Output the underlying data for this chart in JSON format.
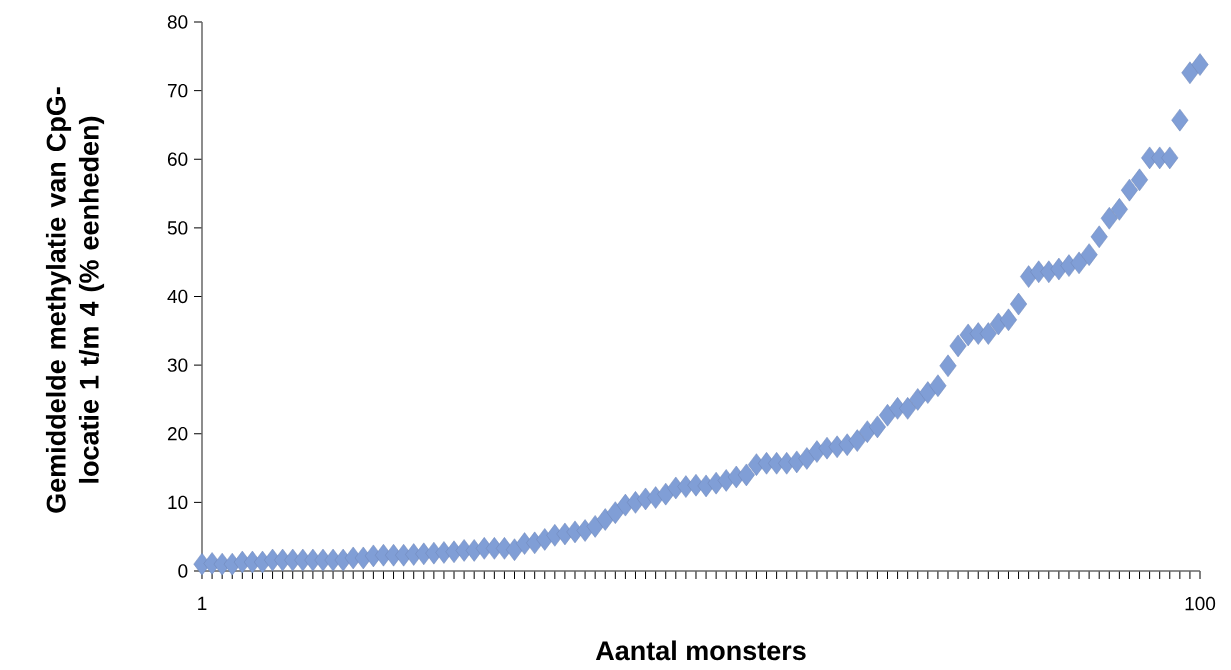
{
  "chart_data": {
    "type": "scatter",
    "xlabel": "Aantal monsters",
    "ylabel": "Gemiddelde methylatie van CpG-locatie 1 t/m 4 (% eenheden)",
    "x": [
      1,
      2,
      3,
      4,
      5,
      6,
      7,
      8,
      9,
      10,
      11,
      12,
      13,
      14,
      15,
      16,
      17,
      18,
      19,
      20,
      21,
      22,
      23,
      24,
      25,
      26,
      27,
      28,
      29,
      30,
      31,
      32,
      33,
      34,
      35,
      36,
      37,
      38,
      39,
      40,
      41,
      42,
      43,
      44,
      45,
      46,
      47,
      48,
      49,
      50,
      51,
      52,
      53,
      54,
      55,
      56,
      57,
      58,
      59,
      60,
      61,
      62,
      63,
      64,
      65,
      66,
      67,
      68,
      69,
      70,
      71,
      72,
      73,
      74,
      75,
      76,
      77,
      78,
      79,
      80,
      81,
      82,
      83,
      84,
      85,
      86,
      87,
      88,
      89,
      90,
      91,
      92,
      93,
      94,
      95,
      96,
      97,
      98,
      99,
      100
    ],
    "values": [
      1.0,
      1.1,
      1.0,
      1.0,
      1.3,
      1.3,
      1.3,
      1.6,
      1.6,
      1.6,
      1.6,
      1.6,
      1.6,
      1.6,
      1.6,
      1.9,
      1.9,
      2.2,
      2.3,
      2.3,
      2.3,
      2.4,
      2.5,
      2.6,
      2.7,
      2.8,
      3.0,
      3.0,
      3.3,
      3.3,
      3.3,
      3.1,
      4.0,
      4.1,
      4.6,
      5.2,
      5.4,
      5.7,
      5.9,
      6.5,
      7.5,
      8.5,
      9.6,
      10.0,
      10.5,
      10.7,
      11.2,
      12.1,
      12.3,
      12.5,
      12.4,
      12.8,
      13.2,
      13.7,
      14.0,
      15.5,
      15.7,
      15.7,
      15.7,
      15.9,
      16.4,
      17.4,
      17.9,
      18.1,
      18.4,
      19.0,
      20.3,
      21.0,
      22.7,
      23.7,
      23.7,
      25.0,
      26.0,
      27.0,
      29.9,
      32.8,
      34.4,
      34.6,
      34.6,
      36.0,
      36.6,
      38.9,
      42.9,
      43.6,
      43.6,
      44.0,
      44.5,
      44.9,
      46.1,
      48.7,
      51.4,
      52.7,
      55.5,
      57.0,
      60.2,
      60.2,
      60.2,
      65.7,
      72.6,
      73.8
    ],
    "color": "#809ed6",
    "marker": "diamond",
    "xlim": [
      1,
      100
    ],
    "ylim": [
      0,
      80
    ],
    "xticks": [
      1,
      {
        "value": 2,
        "label": null
      },
      {
        "value": 3,
        "label": null
      },
      {
        "value": 4,
        "label": null
      },
      {
        "value": 5,
        "label": null
      },
      {
        "value": 6,
        "label": null
      },
      {
        "value": 7,
        "label": null
      },
      {
        "value": 8,
        "label": null
      },
      {
        "value": 9,
        "label": null
      },
      {
        "value": 10,
        "label": null
      },
      {
        "value": 11,
        "label": null
      },
      {
        "value": 12,
        "label": null
      },
      {
        "value": 13,
        "label": null
      },
      {
        "value": 14,
        "label": null
      },
      {
        "value": 15,
        "label": null
      },
      {
        "value": 16,
        "label": null
      },
      {
        "value": 17,
        "label": null
      },
      {
        "value": 18,
        "label": null
      },
      {
        "value": 19,
        "label": null
      },
      {
        "value": 20,
        "label": null
      },
      {
        "value": 21,
        "label": null
      },
      {
        "value": 22,
        "label": null
      },
      {
        "value": 23,
        "label": null
      },
      {
        "value": 24,
        "label": null
      },
      {
        "value": 25,
        "label": null
      },
      {
        "value": 26,
        "label": null
      },
      {
        "value": 27,
        "label": null
      },
      {
        "value": 28,
        "label": null
      },
      {
        "value": 29,
        "label": null
      },
      {
        "value": 30,
        "label": null
      },
      {
        "value": 31,
        "label": null
      },
      {
        "value": 32,
        "label": null
      },
      {
        "value": 33,
        "label": null
      },
      {
        "value": 34,
        "label": null
      },
      {
        "value": 35,
        "label": null
      },
      {
        "value": 36,
        "label": null
      },
      {
        "value": 37,
        "label": null
      },
      {
        "value": 38,
        "label": null
      },
      {
        "value": 39,
        "label": null
      },
      {
        "value": 40,
        "label": null
      },
      {
        "value": 41,
        "label": null
      },
      {
        "value": 42,
        "label": null
      },
      {
        "value": 43,
        "label": null
      },
      {
        "value": 44,
        "label": null
      },
      {
        "value": 45,
        "label": null
      },
      {
        "value": 46,
        "label": null
      },
      {
        "value": 47,
        "label": null
      },
      {
        "value": 48,
        "label": null
      },
      {
        "value": 49,
        "label": null
      },
      {
        "value": 50,
        "label": null
      },
      {
        "value": 51,
        "label": null
      },
      {
        "value": 52,
        "label": null
      },
      {
        "value": 53,
        "label": null
      },
      {
        "value": 54,
        "label": null
      },
      {
        "value": 55,
        "label": null
      },
      {
        "value": 56,
        "label": null
      },
      {
        "value": 57,
        "label": null
      },
      {
        "value": 58,
        "label": null
      },
      {
        "value": 59,
        "label": null
      },
      {
        "value": 60,
        "label": null
      },
      {
        "value": 61,
        "label": null
      },
      {
        "value": 62,
        "label": null
      },
      {
        "value": 63,
        "label": null
      },
      {
        "value": 64,
        "label": null
      },
      {
        "value": 65,
        "label": null
      },
      {
        "value": 66,
        "label": null
      },
      {
        "value": 67,
        "label": null
      },
      {
        "value": 68,
        "label": null
      },
      {
        "value": 69,
        "label": null
      },
      {
        "value": 70,
        "label": null
      },
      {
        "value": 71,
        "label": null
      },
      {
        "value": 72,
        "label": null
      },
      {
        "value": 73,
        "label": null
      },
      {
        "value": 74,
        "label": null
      },
      {
        "value": 75,
        "label": null
      },
      {
        "value": 76,
        "label": null
      },
      {
        "value": 77,
        "label": null
      },
      {
        "value": 78,
        "label": null
      },
      {
        "value": 79,
        "label": null
      },
      {
        "value": 80,
        "label": null
      },
      {
        "value": 81,
        "label": null
      },
      {
        "value": 82,
        "label": null
      },
      {
        "value": 83,
        "label": null
      },
      {
        "value": 84,
        "label": null
      },
      {
        "value": 85,
        "label": null
      },
      {
        "value": 86,
        "label": null
      },
      {
        "value": 87,
        "label": null
      },
      {
        "value": 88,
        "label": null
      },
      {
        "value": 89,
        "label": null
      },
      {
        "value": 90,
        "label": null
      },
      {
        "value": 91,
        "label": null
      },
      {
        "value": 92,
        "label": null
      },
      {
        "value": 93,
        "label": null
      },
      {
        "value": 94,
        "label": null
      },
      {
        "value": 95,
        "label": null
      },
      {
        "value": 96,
        "label": null
      },
      {
        "value": 97,
        "label": null
      },
      {
        "value": 98,
        "label": null
      },
      {
        "value": 99,
        "label": null
      },
      100
    ],
    "yticks": [
      0,
      10,
      20,
      30,
      40,
      50,
      60,
      70,
      80
    ]
  }
}
